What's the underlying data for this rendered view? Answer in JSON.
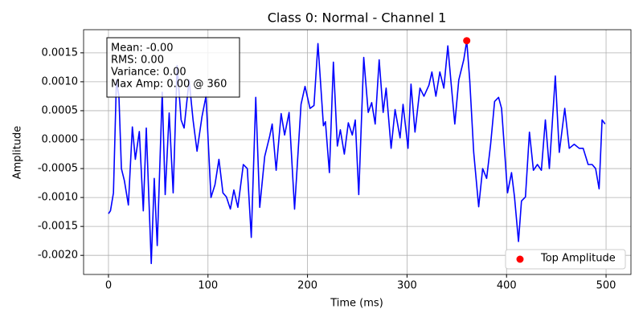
{
  "chart_data": {
    "type": "line",
    "title": "Class 0: Normal - Channel 1",
    "xlabel": "Time (ms)",
    "ylabel": "Amplitude",
    "x": [
      0,
      2,
      5,
      8,
      10.5,
      13,
      16,
      20,
      24,
      27,
      31,
      35,
      38,
      43,
      46,
      49,
      54,
      57,
      61,
      65,
      69,
      73,
      76,
      81,
      85,
      89,
      94,
      98,
      103,
      107,
      111,
      115,
      118.5,
      122.5,
      126,
      130,
      135.5,
      139.5,
      143.5,
      148,
      152,
      157,
      162,
      164.5,
      168.5,
      173.5,
      177,
      181.5,
      187,
      193.5,
      197.5,
      202.5,
      206.5,
      210.5,
      216,
      218,
      222,
      226,
      230,
      233,
      237,
      241,
      245,
      248,
      251.5,
      256.5,
      261,
      264.5,
      268,
      272,
      276,
      279,
      284,
      288,
      293,
      296,
      301,
      304,
      308,
      313,
      317,
      322,
      325,
      329,
      333,
      337,
      341,
      344,
      348,
      352,
      357,
      360,
      363,
      367,
      372,
      376,
      380,
      384,
      388,
      392,
      395,
      401,
      405,
      408,
      412,
      415,
      419,
      423,
      427,
      431,
      435,
      439,
      443,
      449,
      453,
      458.5,
      463,
      468,
      473,
      477,
      482,
      486,
      489.5,
      493,
      496,
      499
    ],
    "values": [
      -0.00128,
      -0.00123,
      -0.00092,
      0.00103,
      0.00075,
      -0.0005,
      -0.00071,
      -0.00113,
      0.00022,
      -0.00034,
      0.00014,
      -0.00123,
      0.0002,
      -0.00214,
      -0.00067,
      -0.00183,
      0.00082,
      -0.00095,
      0.00046,
      -0.00092,
      0.00128,
      0.00034,
      0.0002,
      0.00103,
      0.00034,
      -0.0002,
      0.0004,
      0.00075,
      -0.001,
      -0.00078,
      -0.00034,
      -0.00092,
      -0.00099,
      -0.0012,
      -0.00087,
      -0.00117,
      -0.00043,
      -0.0005,
      -0.00169,
      0.00073,
      -0.00117,
      -0.00029,
      6e-05,
      0.00027,
      -0.00053,
      0.00045,
      8e-05,
      0.00047,
      -0.0012,
      0.00061,
      0.00092,
      0.00054,
      0.00059,
      0.00166,
      0.00024,
      0.00031,
      -0.00057,
      0.00134,
      -0.00011,
      0.00017,
      -0.00025,
      0.00029,
      8e-05,
      0.00034,
      -0.00095,
      0.00142,
      0.00047,
      0.00064,
      0.00027,
      0.00138,
      0.00047,
      0.00089,
      -0.00015,
      0.00052,
      3e-05,
      0.00061,
      -0.00015,
      0.00096,
      0.00013,
      0.00089,
      0.00075,
      0.00094,
      0.00117,
      0.00075,
      0.00117,
      0.00089,
      0.00162,
      0.00103,
      0.00027,
      0.00103,
      0.00138,
      0.00171,
      0.00103,
      -0.00022,
      -0.00116,
      -0.0005,
      -0.00067,
      -8e-05,
      0.00066,
      0.00073,
      0.00054,
      -0.00092,
      -0.00057,
      -0.00099,
      -0.00176,
      -0.00106,
      -0.00099,
      0.00013,
      -0.00053,
      -0.00043,
      -0.00053,
      0.00034,
      -0.0005,
      0.0011,
      -0.00022,
      0.00054,
      -0.00015,
      -8e-05,
      -0.00015,
      -0.00015,
      -0.00043,
      -0.00043,
      -0.0005,
      -0.00085,
      0.00034,
      0.00027
    ],
    "color": "#0000ff",
    "highlight": {
      "name": "Top Amplitude",
      "x": 360,
      "value": 0.00171,
      "color": "#ff0000"
    },
    "stats": [
      "Mean: -0.00",
      "RMS: 0.00",
      "Variance: 0.00",
      "Max Amp: 0.00 @ 360"
    ],
    "xlim": [
      -25,
      525
    ],
    "xticks": [
      0,
      100,
      200,
      300,
      400,
      500
    ],
    "ylim": [
      -0.00233,
      0.0019
    ],
    "yticks": [
      {
        "value": -0.002,
        "label": "-0.0020"
      },
      {
        "value": -0.0015,
        "label": "-0.0015"
      },
      {
        "value": -0.001,
        "label": "-0.0010"
      },
      {
        "value": -0.0005,
        "label": "-0.0005"
      },
      {
        "value": 0,
        "label": "0.0000"
      },
      {
        "value": 0.0005,
        "label": "0.0005"
      },
      {
        "value": 0.001,
        "label": "0.0010"
      },
      {
        "value": 0.0015,
        "label": "0.0015"
      }
    ],
    "grid": true,
    "legend": "lower right"
  }
}
